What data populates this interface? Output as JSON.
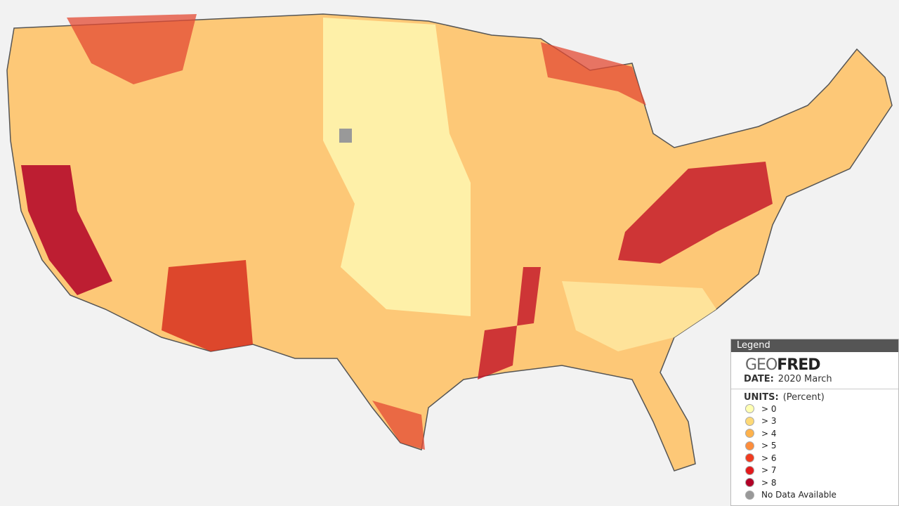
{
  "legend": {
    "title": "Legend",
    "brand": {
      "prefix": "GEO",
      "name": "FRED"
    },
    "date": {
      "label": "DATE:",
      "value": "2020 March"
    },
    "units": {
      "label": "UNITS:",
      "value": "(Percent)"
    },
    "items": [
      {
        "label": "> 0",
        "color": "#ffffb2"
      },
      {
        "label": "> 3",
        "color": "#fed976"
      },
      {
        "label": "> 4",
        "color": "#feb24c"
      },
      {
        "label": "> 5",
        "color": "#fd8d3c"
      },
      {
        "label": "> 6",
        "color": "#f03b20"
      },
      {
        "label": "> 7",
        "color": "#e31a1c"
      },
      {
        "label": "> 8",
        "color": "#b10026"
      },
      {
        "label": "No Data Available",
        "color": "#999999"
      }
    ]
  }
}
